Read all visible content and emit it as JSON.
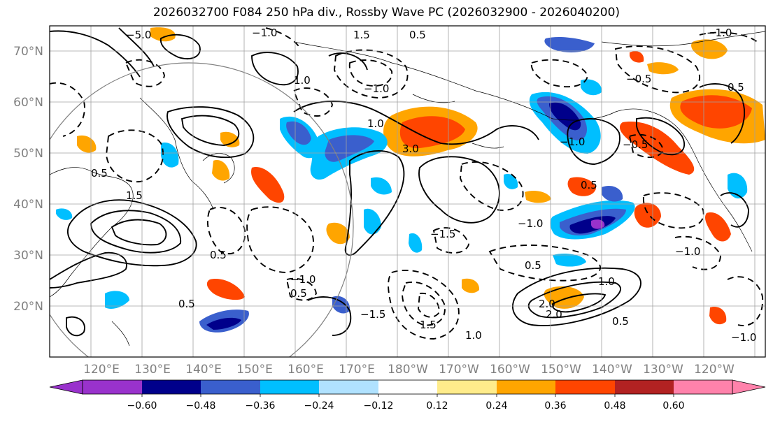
{
  "title": "2026032700 F084 250 hPa div., Rossby Wave PC (2026032900 - 2026040200)",
  "map": {
    "projection": "PlateCarree",
    "extent": {
      "lon_min": 112,
      "lon_max": 252,
      "lat_min": 10,
      "lat_max": 75
    },
    "lat_labels": [
      "70°N",
      "60°N",
      "50°N",
      "40°N",
      "30°N",
      "20°N"
    ],
    "lon_labels": [
      "120°E",
      "130°E",
      "140°E",
      "150°E",
      "160°E",
      "170°E",
      "180°W",
      "170°W",
      "160°W",
      "150°W",
      "140°W",
      "130°W",
      "120°W"
    ]
  },
  "colorbar": {
    "levels": [
      "−0.60",
      "−0.48",
      "−0.36",
      "−0.24",
      "−0.12",
      "0.12",
      "0.24",
      "0.36",
      "0.48",
      "0.60"
    ],
    "colors": [
      "#9932cc",
      "#00008b",
      "#3a5fcd",
      "#00bfff",
      "#b0e2ff",
      "#ffffff",
      "#ffec8b",
      "#ffa500",
      "#ff4500",
      "#b22222",
      "#ff82ab"
    ]
  },
  "contour_labels": [
    "−5.0",
    "−1.0",
    "1.5",
    "0.5",
    "−1.0",
    "1.0",
    "−0.5",
    "0.5",
    "−1.0",
    "1.0",
    "1.5",
    "−1.0",
    "0.5",
    "3.0",
    "2.0",
    "1.0",
    "−0.5",
    "−1.0",
    "0.5",
    "−1.5",
    "−1.0",
    "1.5",
    "0.5",
    "−1.0",
    "0.5",
    "0.5",
    "−1.0",
    "0.5",
    "−1.5",
    "1.0",
    "2.0",
    "0.5"
  ]
}
